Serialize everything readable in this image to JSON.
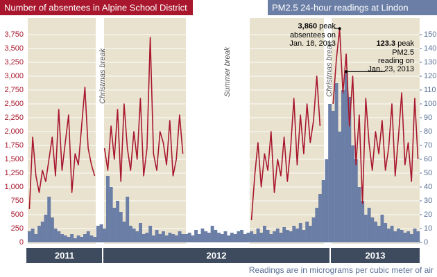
{
  "chart_data": {
    "type": "bar-line",
    "categories": [
      null,
      null,
      null,
      null,
      null,
      null,
      null,
      null,
      null,
      null,
      null,
      null,
      null,
      null,
      null,
      null,
      null,
      null,
      null,
      null,
      null,
      null,
      null,
      null,
      null,
      null,
      null,
      null,
      null,
      null,
      null,
      null,
      null,
      null,
      null,
      null,
      null,
      null,
      null,
      null,
      null,
      null,
      null,
      null,
      null,
      null,
      null,
      null,
      null,
      null,
      null,
      null,
      null,
      null,
      null,
      null,
      null,
      null,
      null,
      null,
      null,
      null,
      null,
      null,
      null,
      null,
      null,
      null,
      null,
      null,
      null,
      null,
      null,
      null,
      null,
      null,
      null,
      null,
      null,
      null,
      null,
      null,
      null,
      null,
      null,
      null,
      null,
      null,
      null,
      null,
      null,
      null,
      null,
      null,
      null,
      null,
      null,
      null,
      null,
      null,
      null,
      null,
      null,
      null,
      null,
      null,
      null,
      null,
      null,
      null,
      null,
      null,
      null,
      null,
      null,
      null,
      null,
      null,
      null,
      null
    ],
    "series": [
      {
        "name": "Number of absentees in Alpine School District",
        "color": "#a8172d",
        "kind": "line",
        "values": [
          600,
          1900,
          1200,
          900,
          1300,
          1100,
          1500,
          1900,
          1200,
          2400,
          1300,
          1800,
          2300,
          900,
          1600,
          1400,
          2100,
          2800,
          1700,
          1400,
          1200,
          null,
          null,
          1700,
          1300,
          2100,
          1500,
          2400,
          1100,
          2500,
          1700,
          1300,
          2000,
          1500,
          2600,
          1200,
          1700,
          3700,
          1600,
          1300,
          2000,
          1800,
          1400,
          2200,
          1200,
          1500,
          2300,
          1600,
          null,
          null,
          null,
          null,
          null,
          null,
          null,
          null,
          null,
          null,
          null,
          null,
          null,
          null,
          null,
          null,
          null,
          null,
          null,
          null,
          400,
          1200,
          1800,
          1000,
          1600,
          1300,
          2000,
          900,
          1500,
          1200,
          1900,
          1100,
          1700,
          2600,
          1400,
          2300,
          1600,
          2500,
          1800,
          2200,
          3000,
          2100,
          null,
          null,
          null,
          2500,
          3300,
          3860,
          2700,
          3400,
          2100,
          3000,
          1400,
          2300,
          700,
          2600,
          1800,
          1300,
          2000,
          1600,
          2200,
          1300,
          1700,
          2500,
          1200,
          1900,
          2700,
          1400,
          1800,
          1100,
          2600,
          1500
        ]
      },
      {
        "name": "PM2.5 24-hour readings at Lindon",
        "color": "#6b7ea6",
        "kind": "bar",
        "axis": "y2",
        "values": [
          8,
          10,
          6,
          12,
          15,
          20,
          33,
          18,
          10,
          8,
          6,
          5,
          4,
          6,
          3,
          5,
          4,
          6,
          8,
          5,
          4,
          12,
          13,
          10,
          48,
          40,
          25,
          30,
          22,
          15,
          33,
          12,
          10,
          8,
          14,
          6,
          7,
          12,
          5,
          9,
          6,
          8,
          5,
          7,
          6,
          5,
          8,
          6,
          6,
          7,
          5,
          9,
          6,
          10,
          8,
          7,
          12,
          9,
          7,
          6,
          8,
          5,
          7,
          6,
          8,
          9,
          6,
          7,
          8,
          6,
          10,
          7,
          12,
          9,
          6,
          8,
          10,
          7,
          11,
          9,
          8,
          12,
          10,
          14,
          9,
          15,
          12,
          18,
          25,
          35,
          45,
          60,
          100,
          95,
          115,
          80,
          110,
          123.3,
          105,
          70,
          60,
          40,
          30,
          20,
          25,
          18,
          15,
          12,
          20,
          14,
          10,
          12,
          8,
          10,
          9,
          7,
          8,
          6,
          10,
          8
        ]
      }
    ],
    "ylim": [
      0,
      3900
    ],
    "yticks": [
      0,
      250,
      500,
      750,
      {
        "value": 1000,
        "label": "1,000"
      },
      {
        "value": 1250,
        "label": "1,250"
      },
      {
        "value": 1500,
        "label": "1,500"
      },
      {
        "value": 1750,
        "label": "1,750"
      },
      {
        "value": 2000,
        "label": "2,000"
      },
      {
        "value": 2250,
        "label": "2,250"
      },
      {
        "value": 2500,
        "label": "2,500"
      },
      {
        "value": 2750,
        "label": "2,750"
      },
      {
        "value": 3000,
        "label": "3,000"
      },
      {
        "value": 3250,
        "label": "3,250"
      },
      {
        "value": 3500,
        "label": "3,500"
      },
      {
        "value": 3750,
        "label": "3,750"
      }
    ],
    "y2lim": [
      0,
      156
    ],
    "y2ticks": [
      0,
      10,
      20,
      30,
      40,
      50,
      60,
      70,
      80,
      90,
      100,
      110,
      120,
      130,
      140,
      150
    ],
    "grid": true,
    "year_labels": [
      "2011",
      "2012",
      "2013"
    ],
    "breaks": [
      "Christmas break",
      "Summer break",
      "Christmas break"
    ],
    "annotations": [
      {
        "bold": "3,860",
        "text": " peak",
        "lines": [
          "absentees on",
          "Jan. 18, 2013"
        ]
      },
      {
        "bold": "123.3",
        "text": " peak",
        "lines": [
          "PM2.5",
          "reading on",
          "Jan. 23, 2013"
        ]
      }
    ],
    "note": "Readings are in micrograms per cubic meter of air"
  }
}
